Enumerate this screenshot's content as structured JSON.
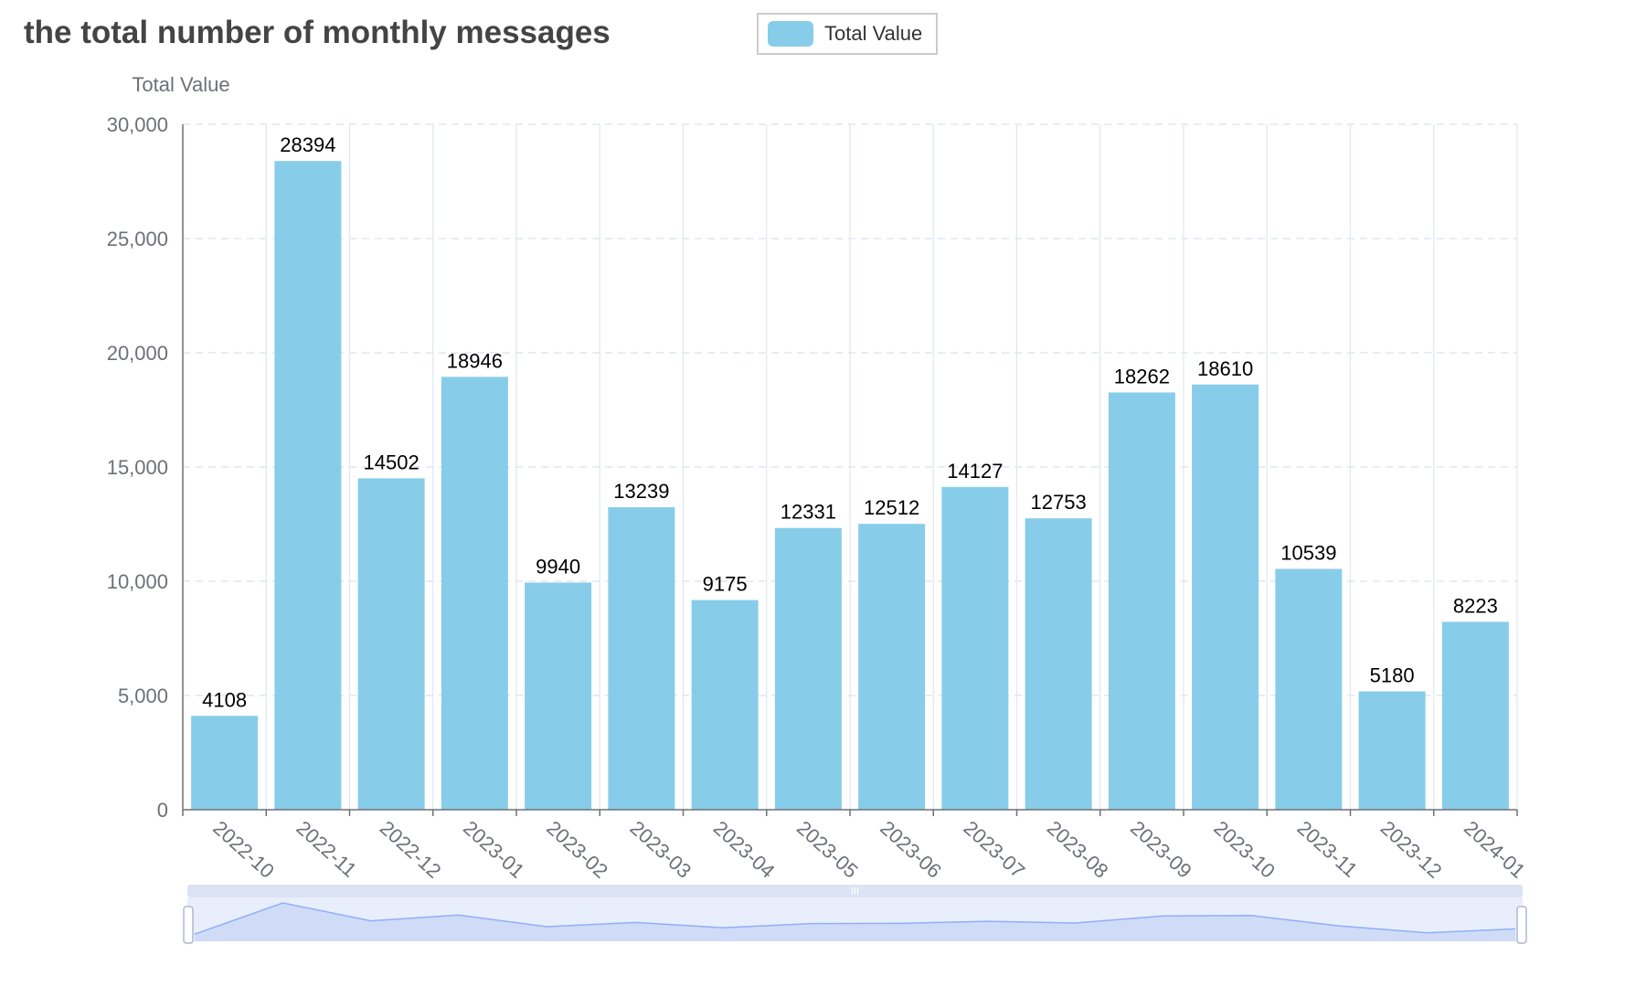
{
  "chart_data": {
    "type": "bar",
    "title": "the total number of monthly messages",
    "ylabel": "Total Value",
    "xlabel": "",
    "categories": [
      "2022-10",
      "2022-11",
      "2022-12",
      "2023-01",
      "2023-02",
      "2023-03",
      "2023-04",
      "2023-05",
      "2023-06",
      "2023-07",
      "2023-08",
      "2023-09",
      "2023-10",
      "2023-11",
      "2023-12",
      "2024-01"
    ],
    "series": [
      {
        "name": "Total Value",
        "values": [
          4108,
          28394,
          14502,
          18946,
          9940,
          13239,
          9175,
          12331,
          12512,
          14127,
          12753,
          18262,
          18610,
          10539,
          5180,
          8223
        ]
      }
    ],
    "ylim": [
      0,
      30000
    ],
    "yticks": [
      0,
      5000,
      10000,
      15000,
      20000,
      25000,
      30000
    ],
    "ytick_labels": [
      "0",
      "5,000",
      "10,000",
      "15,000",
      "20,000",
      "25,000",
      "30,000"
    ],
    "legend": "top-center",
    "grid": true,
    "data_zoom": "slider-bottom",
    "colors": {
      "bar": "#87cde9",
      "axis": "#6e7079",
      "grid": "#e0e6f1"
    }
  }
}
